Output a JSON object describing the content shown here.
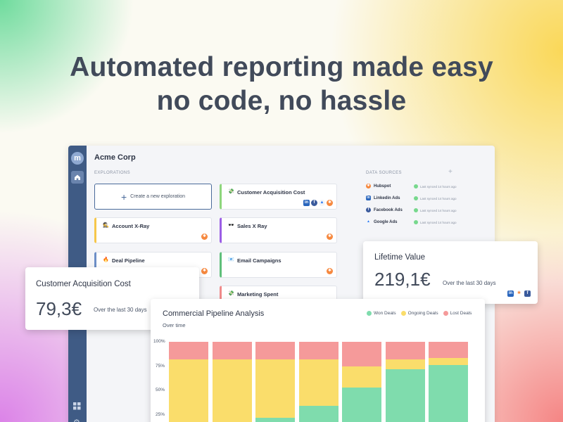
{
  "headline": {
    "line1": "Automated reporting made easy",
    "line2": "no code, no hassle"
  },
  "app": {
    "title": "Acme Corp",
    "explorations_label": "EXPLORATIONS",
    "data_sources_label": "DATA SOURCES",
    "create_label": "Create a new exploration",
    "tiles": [
      {
        "label": "Customer Acquisition Cost",
        "emoji": "💸",
        "accent": "#8ed67c",
        "badges": [
          "li",
          "fb",
          "ga",
          "hub"
        ]
      },
      {
        "label": "Account X-Ray",
        "emoji": "🕵️",
        "accent": "#f6c74a",
        "badges": [
          "hub"
        ]
      },
      {
        "label": "Sales X Ray",
        "emoji": "🕶️",
        "accent": "#9b5de5",
        "badges": [
          "hub"
        ]
      },
      {
        "label": "Deal Pipeline",
        "emoji": "🔥",
        "accent": "#6d8fc7",
        "badges": [
          "hub"
        ]
      },
      {
        "label": "Email Campaigns",
        "emoji": "📧",
        "accent": "#5fbf7a",
        "badges": [
          "hub"
        ]
      },
      {
        "label": "Marketing Spent",
        "emoji": "💸",
        "accent": "#f08a8a",
        "badges": []
      }
    ],
    "data_sources": [
      {
        "name": "Hubspot",
        "icon": "hubspot-icon",
        "status": "Last synced 14 hours ago"
      },
      {
        "name": "Linkedin Ads",
        "icon": "linkedin-icon",
        "status": "Last synced 14 hours ago"
      },
      {
        "name": "Facebook Ads",
        "icon": "facebook-icon",
        "status": "Last synced 14 hours ago"
      },
      {
        "name": "Google Ads",
        "icon": "google-ads-icon",
        "status": "Last synced 14 hours ago"
      }
    ]
  },
  "cac_card": {
    "title": "Customer Acquisition Cost",
    "value": "79,3€",
    "sub": "Over the last 30 days"
  },
  "ltv_card": {
    "title": "Lifetime Value",
    "value": "219,1€",
    "sub": "Over the last 30 days"
  },
  "pipeline_card": {
    "title": "Commercial Pipeline Analysis",
    "subtitle": "Over time"
  },
  "colors": {
    "won": "#7fdcad",
    "ongoing": "#fadd6b",
    "lost": "#f59a9a"
  },
  "chart_data": {
    "type": "bar",
    "title": "Commercial Pipeline Analysis",
    "subtitle": "Over time",
    "stacked": true,
    "yticks": [
      "100%",
      "75%",
      "50%",
      "25%"
    ],
    "ylim": [
      0,
      100
    ],
    "categories": [
      "",
      "",
      "",
      "",
      "",
      "",
      ""
    ],
    "series": [
      {
        "name": "Won Deals",
        "values": [
          0,
          12,
          22,
          34,
          53,
          72,
          76
        ]
      },
      {
        "name": "Ongoing Deals",
        "values": [
          82,
          70,
          60,
          48,
          22,
          10,
          7
        ]
      },
      {
        "name": "Lost Deals",
        "values": [
          18,
          18,
          18,
          18,
          25,
          18,
          17
        ]
      }
    ],
    "legend_position": "top-right"
  }
}
